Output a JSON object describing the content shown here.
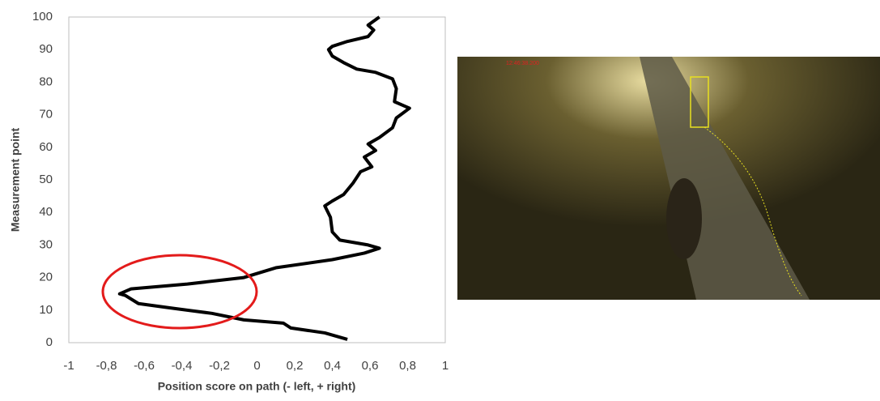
{
  "chart_data": {
    "type": "line",
    "x_label": "Position score on path (- left, + right)",
    "y_label": "Measurement  point",
    "series": [
      {
        "color": "#000000",
        "x": [
          0.48,
          0.36,
          0.18,
          0.14,
          -0.07,
          -0.24,
          -0.44,
          -0.63,
          -0.7,
          -0.73,
          -0.67,
          -0.37,
          -0.07,
          0.1,
          0.4,
          0.57,
          0.65,
          0.59,
          0.44,
          0.4,
          0.39,
          0.36,
          0.4,
          0.46,
          0.51,
          0.55,
          0.61,
          0.57,
          0.63,
          0.59,
          0.65,
          0.72,
          0.74,
          0.81,
          0.73,
          0.74,
          0.72,
          0.63,
          0.53,
          0.46,
          0.4,
          0.38,
          0.4,
          0.48,
          0.59,
          0.62,
          0.59,
          0.65
        ],
        "values": [
          1,
          3,
          4.5,
          6,
          7,
          9,
          10.5,
          12,
          14.5,
          15,
          16.5,
          18,
          20,
          23,
          25.5,
          27.5,
          29,
          30,
          31.5,
          34,
          38.5,
          42,
          43.5,
          45.5,
          49,
          52.5,
          54,
          57,
          59,
          61,
          63,
          66,
          69,
          72,
          74,
          78,
          81,
          83,
          84,
          86,
          88,
          90,
          91,
          92.5,
          94,
          96,
          97.5,
          100
        ]
      }
    ],
    "xlim": [
      -1,
      1
    ],
    "xticks": [
      -1,
      {
        "value": -0.8,
        "label": "-0,8"
      },
      {
        "value": -0.6,
        "label": "-0,6"
      },
      {
        "value": -0.4,
        "label": "-0,4"
      },
      {
        "value": -0.2,
        "label": "-0,2"
      },
      0,
      {
        "value": 0.2,
        "label": "0,2"
      },
      {
        "value": 0.4,
        "label": "0,4"
      },
      {
        "value": 0.6,
        "label": "0,6"
      },
      {
        "value": 0.8,
        "label": "0,8"
      },
      1
    ],
    "ylim": [
      0,
      100
    ],
    "yticks": [
      0,
      10,
      20,
      30,
      40,
      50,
      60,
      70,
      80,
      90,
      100
    ],
    "highlight_color": "#e31b1b"
  },
  "photo": {
    "timestamp": "12:46:38.200"
  }
}
